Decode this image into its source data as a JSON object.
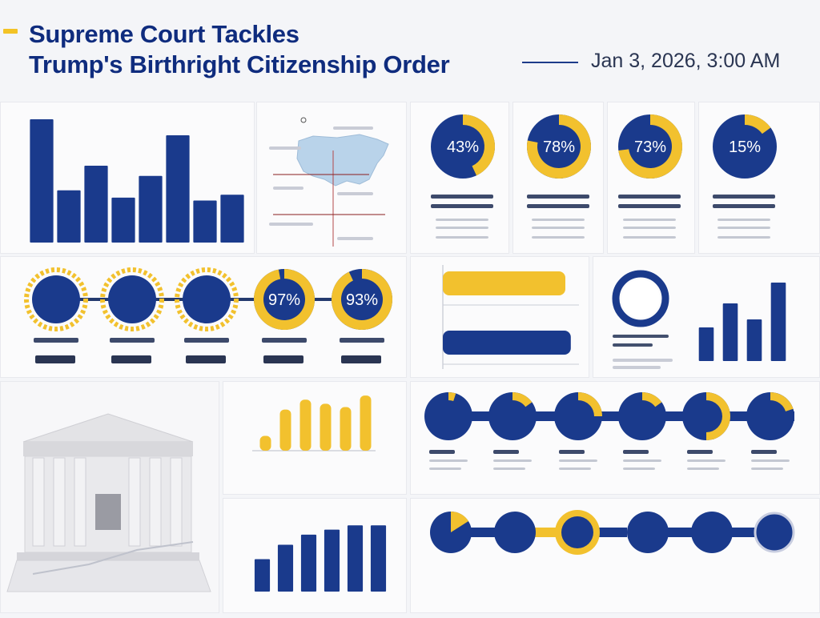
{
  "headline": {
    "line1": "Supreme Court Tackles",
    "line2": "Trump's Birthright Citizenship Order"
  },
  "timestamp": "Jan 3, 2026, 3:00 AM",
  "colors": {
    "navy": "#1a3a8c",
    "gold": "#f2c12e",
    "track": "#dfe3ee",
    "text": "#0f2c7e"
  },
  "chart_data": [
    {
      "type": "bar",
      "values": [
        85,
        36,
        53,
        31,
        46,
        74,
        29,
        33
      ],
      "ylim": [
        0,
        90
      ]
    },
    {
      "type": "pie",
      "variant": "donut-gauges",
      "values": [
        43,
        78,
        73,
        15
      ],
      "labels": [
        "43%",
        "78%",
        "73%",
        "15%"
      ]
    },
    {
      "type": "pie",
      "variant": "donut-gauges",
      "values": [
        97,
        93
      ],
      "labels": [
        "97%",
        "93%"
      ]
    },
    {
      "type": "bar",
      "orientation": "horizontal",
      "values": [
        90,
        94
      ],
      "colors": [
        "#f2c12e",
        "#1a3a8c"
      ],
      "xlim": [
        0,
        100
      ]
    },
    {
      "type": "bar",
      "values": [
        42,
        72,
        52,
        98
      ],
      "ylim": [
        0,
        100
      ]
    },
    {
      "type": "bar",
      "values": [
        18,
        50,
        62,
        57,
        53,
        67
      ],
      "ylim": [
        0,
        70
      ],
      "color": "#f2c12e"
    },
    {
      "type": "bar",
      "values": [
        45,
        65,
        79,
        86,
        92,
        92
      ],
      "ylim": [
        0,
        100
      ]
    },
    {
      "type": "pie",
      "variant": "donut-gauges",
      "values": [
        5,
        15,
        25,
        15,
        50,
        20
      ]
    }
  ]
}
